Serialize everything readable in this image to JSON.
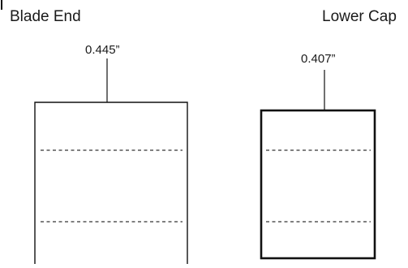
{
  "diagram": {
    "blade_end": {
      "title": "Blade End",
      "dimension": "0.445”"
    },
    "lower_cap": {
      "title": "Lower Cap",
      "dimension": "0.407”"
    }
  },
  "colors": {
    "outline": "#111111",
    "dashed_line": "#808080",
    "text": "#1a1a1a"
  }
}
